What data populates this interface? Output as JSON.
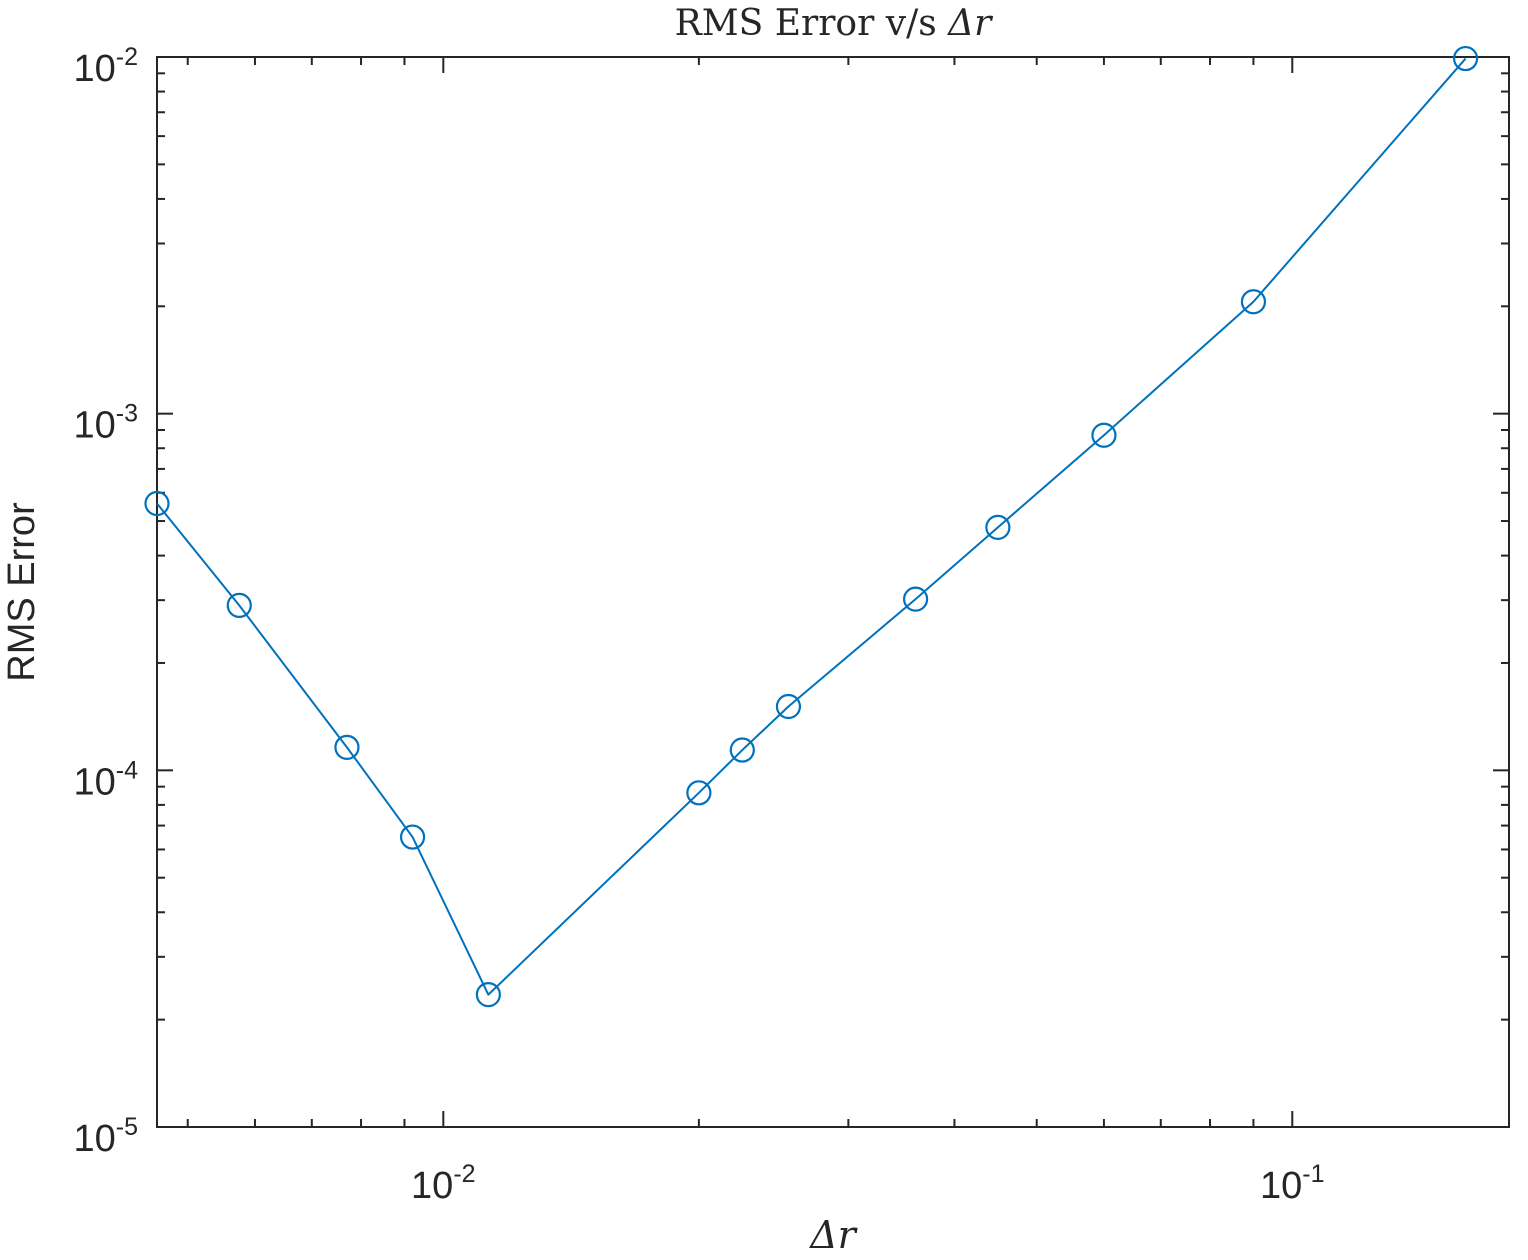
{
  "chart_data": {
    "type": "line",
    "title_text": "RMS Error v/s ",
    "title_symbol": "Δr",
    "xlabel": "Δr",
    "ylabel": "RMS Error",
    "xscale": "log",
    "yscale": "log",
    "xlim": [
      0.0046,
      0.18
    ],
    "ylim": [
      1e-05,
      0.01
    ],
    "grid": false,
    "legend": "none",
    "x_ticks": [
      {
        "value": 0.01,
        "base": "10",
        "exp": "-2"
      },
      {
        "value": 0.1,
        "base": "10",
        "exp": "-1"
      }
    ],
    "y_ticks": [
      {
        "value": 1e-05,
        "base": "10",
        "exp": "-5"
      },
      {
        "value": 0.0001,
        "base": "10",
        "exp": "-4"
      },
      {
        "value": 0.001,
        "base": "10",
        "exp": "-3"
      },
      {
        "value": 0.01,
        "base": "10",
        "exp": "-2"
      }
    ],
    "series": [
      {
        "color": "#0072BD",
        "marker": "circle",
        "x": [
          0.0046,
          0.00575,
          0.0077,
          0.0092,
          0.0113,
          0.02,
          0.0225,
          0.0255,
          0.036,
          0.045,
          0.06,
          0.09,
          0.16
        ],
        "y": [
          0.00056,
          0.00029,
          0.000116,
          6.5e-05,
          2.35e-05,
          8.65e-05,
          0.000114,
          0.000151,
          0.000302,
          0.00048,
          0.00087,
          0.00206,
          0.0099
        ]
      }
    ]
  }
}
